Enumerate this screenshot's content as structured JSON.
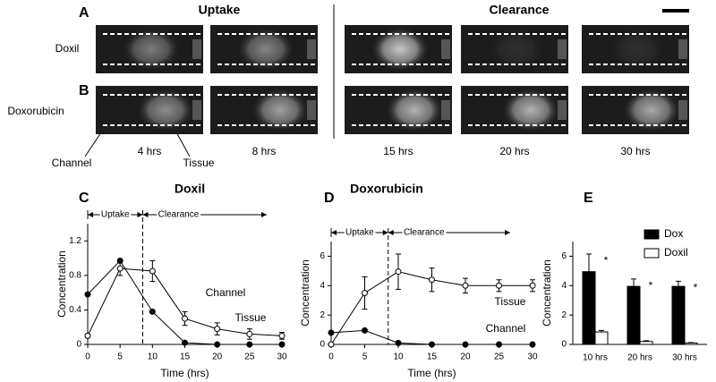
{
  "images": {
    "panel_a": "A",
    "panel_b": "B",
    "uptake": "Uptake",
    "clearance": "Clearance",
    "rows": [
      "Doxil",
      "Doxorubicin"
    ],
    "times": [
      "4 hrs",
      "8 hrs",
      "15 hrs",
      "20 hrs",
      "30 hrs"
    ],
    "channel_label": "Channel",
    "tissue_label": "Tissue"
  },
  "chart_data": [
    {
      "type": "line",
      "panel": "C",
      "title": "Doxil",
      "xlabel": "Time (hrs)",
      "ylabel": "Concentration",
      "uptake": "Uptake",
      "clearance": "Clearance",
      "phase_split": 8.5,
      "xlim": [
        0,
        30
      ],
      "ylim": [
        0,
        1.4
      ],
      "xticks": [
        0,
        5,
        10,
        15,
        20,
        25,
        30
      ],
      "yticks": [
        0,
        0.4,
        0.8,
        1.2
      ],
      "x": [
        0,
        5,
        10,
        15,
        20,
        25,
        30
      ],
      "series": [
        {
          "name": "Tissue",
          "marker": "open",
          "color": "#000",
          "values": [
            0.1,
            0.88,
            0.85,
            0.3,
            0.18,
            0.12,
            0.1
          ],
          "errors": [
            0.02,
            0.08,
            0.12,
            0.08,
            0.07,
            0.06,
            0.04
          ]
        },
        {
          "name": "Channel",
          "marker": "filled",
          "color": "#000",
          "values": [
            0.58,
            0.97,
            0.38,
            0.02,
            0,
            0,
            0
          ]
        }
      ]
    },
    {
      "type": "line",
      "panel": "D",
      "title": "Doxorubicin",
      "xlabel": "Time (hrs)",
      "ylabel": "Concentration",
      "uptake": "Uptake",
      "clearance": "Clearance",
      "phase_split": 8.5,
      "xlim": [
        0,
        30
      ],
      "ylim": [
        0,
        7
      ],
      "xticks": [
        0,
        5,
        10,
        15,
        20,
        25,
        30
      ],
      "yticks": [
        0,
        2,
        4,
        6
      ],
      "x": [
        0,
        5,
        10,
        15,
        20,
        25,
        30
      ],
      "series": [
        {
          "name": "Tissue",
          "marker": "open",
          "color": "#000",
          "values": [
            0,
            3.5,
            4.95,
            4.4,
            4,
            4,
            4
          ],
          "errors": [
            0,
            1.1,
            1.2,
            0.8,
            0.5,
            0.4,
            0.4
          ]
        },
        {
          "name": "Channel",
          "marker": "filled",
          "color": "#000",
          "values": [
            0.8,
            0.95,
            0.1,
            0,
            0,
            0,
            0
          ]
        }
      ]
    },
    {
      "type": "bar",
      "panel": "E",
      "ylabel": "Concentration",
      "ylim": [
        0,
        7
      ],
      "yticks": [
        0,
        2,
        4,
        6
      ],
      "categories": [
        "10 hrs",
        "20 hrs",
        "30 hrs"
      ],
      "significance": [
        "*",
        "*",
        "*"
      ],
      "series": [
        {
          "name": "Dox",
          "color": "#000",
          "values": [
            4.95,
            3.95,
            3.95
          ],
          "errors": [
            1.2,
            0.5,
            0.35
          ]
        },
        {
          "name": "Doxil",
          "color": "#fff",
          "values": [
            0.85,
            0.2,
            0.1
          ],
          "errors": [
            0.1,
            0.05,
            0.03
          ]
        }
      ]
    }
  ]
}
